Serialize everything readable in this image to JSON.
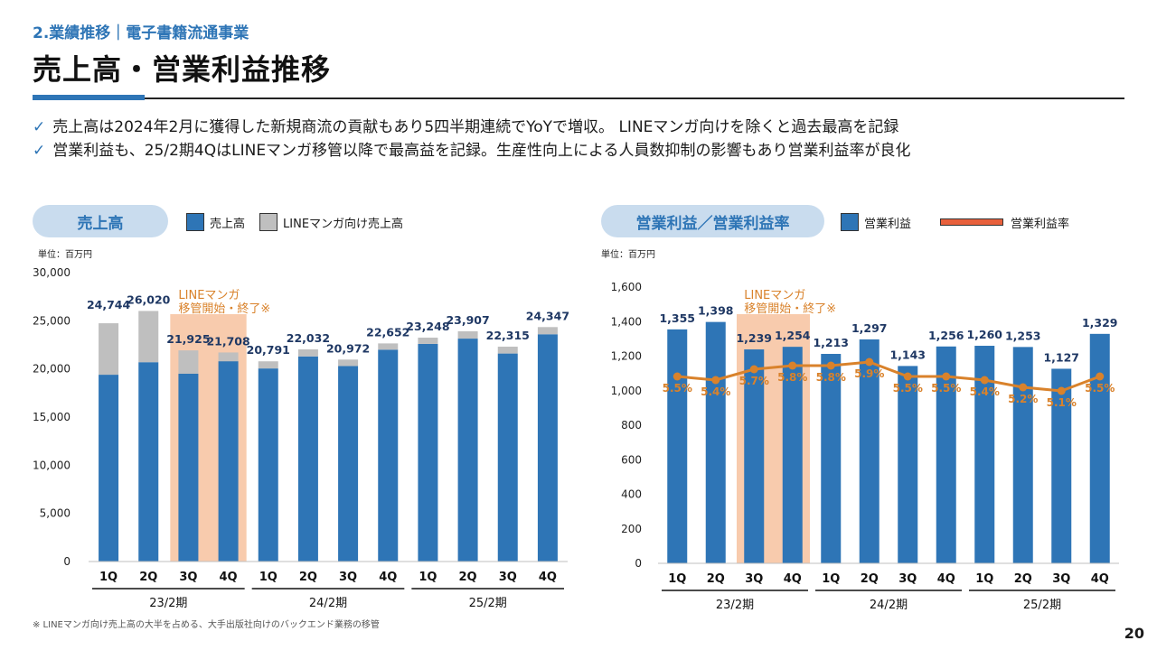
{
  "header": {
    "section": "2.業績推移｜電子書籍流通事業",
    "title": "売上高・営業利益推移"
  },
  "bullets": [
    "売上高は2024年2月に獲得した新規商流の貢献もあり5四半期連続でYoYで増収。 LINEマンガ向けを除くと過去最高を記録",
    "営業利益も、25/2期4QはLINEマンガ移管以降で最高益を記録。生産性向上による人員数抑制の影響もあり営業利益率が良化"
  ],
  "left_panel": {
    "pill": "売上高",
    "legend": [
      "売上高",
      "LINEマンガ向け売上高"
    ],
    "unit": "単位：百万円"
  },
  "right_panel": {
    "pill": "営業利益／営業利益率",
    "legend": [
      "営業利益",
      "営業利益率"
    ],
    "unit": "単位：百万円"
  },
  "colors": {
    "accent": "#2e75b6",
    "bar": "#2e75b6",
    "line_bar": "#bfbfbf",
    "highlight": "#f8cbad",
    "annotation": "#d9822b",
    "line": "#d9822b",
    "label": "#1f3864"
  },
  "chart_data": [
    {
      "type": "bar",
      "title": "売上高",
      "stacked": true,
      "categories": [
        "1Q",
        "2Q",
        "3Q",
        "4Q",
        "1Q",
        "2Q",
        "3Q",
        "4Q",
        "1Q",
        "2Q",
        "3Q",
        "4Q"
      ],
      "periods": [
        {
          "label": "23/2期",
          "from": 0,
          "to": 3
        },
        {
          "label": "24/2期",
          "from": 4,
          "to": 7
        },
        {
          "label": "25/2期",
          "from": 8,
          "to": 11
        }
      ],
      "series": [
        {
          "name": "売上高",
          "values": [
            19400,
            20700,
            19500,
            20800,
            20050,
            21300,
            20300,
            22000,
            22600,
            23150,
            21600,
            23600
          ]
        },
        {
          "name": "LINEマンガ向け売上高",
          "values": [
            5344,
            5320,
            2425,
            908,
            741,
            732,
            672,
            652,
            648,
            757,
            715,
            747
          ]
        }
      ],
      "totals": [
        24744,
        26020,
        21925,
        21708,
        20791,
        22032,
        20972,
        22652,
        23248,
        23907,
        22315,
        24347
      ],
      "total_labels": [
        "24,744",
        "26,020",
        "21,925",
        "21,708",
        "20,791",
        "22,032",
        "20,972",
        "22,652",
        "23,248",
        "23,907",
        "22,315",
        "24,347"
      ],
      "yticks": [
        "0",
        "5,000",
        "10,000",
        "15,000",
        "20,000",
        "25,000",
        "30,000"
      ],
      "ylim": [
        0,
        30000
      ],
      "annotation": [
        "LINEマンガ",
        "移管開始・終了※"
      ],
      "highlight_range": [
        2,
        3
      ]
    },
    {
      "type": "bar+line",
      "title": "営業利益／営業利益率",
      "categories": [
        "1Q",
        "2Q",
        "3Q",
        "4Q",
        "1Q",
        "2Q",
        "3Q",
        "4Q",
        "1Q",
        "2Q",
        "3Q",
        "4Q"
      ],
      "periods": [
        {
          "label": "23/2期",
          "from": 0,
          "to": 3
        },
        {
          "label": "24/2期",
          "from": 4,
          "to": 7
        },
        {
          "label": "25/2期",
          "from": 8,
          "to": 11
        }
      ],
      "series": [
        {
          "name": "営業利益",
          "values": [
            1355,
            1398,
            1239,
            1254,
            1213,
            1297,
            1143,
            1256,
            1260,
            1253,
            1127,
            1329
          ]
        },
        {
          "name": "営業利益率",
          "values": [
            5.5,
            5.4,
            5.7,
            5.8,
            5.8,
            5.9,
            5.5,
            5.5,
            5.4,
            5.2,
            5.1,
            5.5
          ]
        }
      ],
      "bar_labels": [
        "1,355",
        "1,398",
        "1,239",
        "1,254",
        "1,213",
        "1,297",
        "1,143",
        "1,256",
        "1,260",
        "1,253",
        "1,127",
        "1,329"
      ],
      "rate_labels": [
        "5.5%",
        "5.4%",
        "5.7%",
        "5.8%",
        "5.8%",
        "5.9%",
        "5.5%",
        "5.5%",
        "5.4%",
        "5.2%",
        "5.1%",
        "5.5%"
      ],
      "yticks": [
        "0",
        "200",
        "400",
        "600",
        "800",
        "1,000",
        "1,200",
        "1,400",
        "1,600"
      ],
      "ylim": [
        0,
        1600
      ],
      "annotation": [
        "LINEマンガ",
        "移管開始・終了※"
      ],
      "highlight_range": [
        2,
        3
      ]
    }
  ],
  "footnote": "※ LINEマンガ向け売上高の大半を占める、大手出版社向けのバックエンド業務の移管",
  "page_number": "20"
}
